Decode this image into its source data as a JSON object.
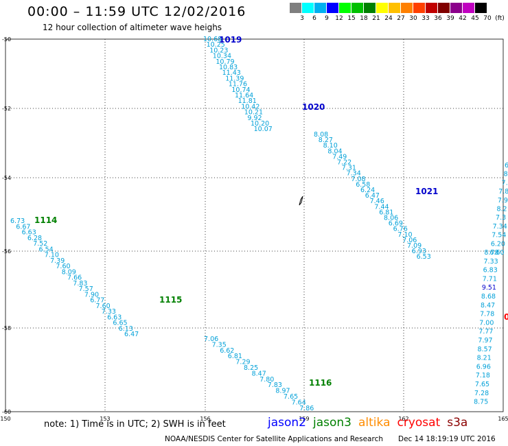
{
  "header": {
    "title": "00:00 – 11:59 UTC 12/02/2016",
    "subtitle": "12 hour collection of altimeter wave heighs"
  },
  "scale": {
    "labels": [
      "3",
      "6",
      "9",
      "12",
      "15",
      "18",
      "21",
      "24",
      "27",
      "30",
      "33",
      "36",
      "39",
      "42",
      "45",
      "70",
      "(ft)"
    ],
    "colors": [
      "#7f7f7f",
      "#00ffff",
      "#00b0f0",
      "#0000ff",
      "#00ff00",
      "#00c000",
      "#008000",
      "#ffff00",
      "#ffc000",
      "#ff8000",
      "#ff4000",
      "#c00000",
      "#800000",
      "#8b008b",
      "#c000c0",
      "#000000"
    ]
  },
  "map": {
    "x_ticks": [
      "150",
      "153",
      "156",
      "159",
      "162",
      "165"
    ],
    "y_ticks": [
      "-50",
      "-52",
      "-54",
      "-56",
      "-58",
      "-60"
    ]
  },
  "tracks": [
    {
      "name": "1019",
      "satellite": "jason2",
      "label_color": "#0000cc",
      "values": [
        "10.68",
        "10.25",
        "10.23",
        "10.34",
        "10.79",
        "10.83",
        "11.43",
        "11.39",
        "11.76",
        "10.74",
        "11.64",
        "11.81",
        "10.42",
        "10.21",
        "9.92",
        "10.20",
        "10.07"
      ]
    },
    {
      "name": "1020",
      "satellite": "jason2",
      "label_color": "#0000cc",
      "values": [
        "8.08",
        "8.27",
        "8.10",
        "8.04",
        "7.49",
        "7.22",
        "7.31",
        "7.34",
        "7.08",
        "6.58",
        "6.24",
        "6.47",
        "7.46",
        "7.44",
        "6.81",
        "8.06",
        "6.69",
        "6.76",
        "7.10",
        "7.06",
        "7.09",
        "6.93",
        "6.53"
      ]
    },
    {
      "name": "1021",
      "satellite": "jason2",
      "label_color": "#0000cc",
      "values": []
    },
    {
      "name": "1114",
      "satellite": "jason3",
      "label_color": "#008000",
      "values": [
        "6.73",
        "6.67",
        "6.63",
        "6.28",
        "7.52",
        "6.54",
        "7.10",
        "7.39",
        "7.60",
        "8.09",
        "7.66",
        "7.83",
        "7.57",
        "7.90",
        "6.77",
        "7.60",
        "7.33",
        "6.63",
        "6.65",
        "6.13",
        "6.47"
      ]
    },
    {
      "name": "1115",
      "satellite": "jason3",
      "label_color": "#008000",
      "values": [
        "7.06",
        "7.35",
        "6.62",
        "6.81",
        "7.29",
        "8.25",
        "8.47",
        "7.80",
        "7.83",
        "8.97",
        "7.65",
        "7.64",
        "7.86"
      ]
    },
    {
      "name": "1116",
      "satellite": "jason3",
      "label_color": "#008000",
      "values": []
    },
    {
      "name": "",
      "satellite": "",
      "label_color": "#00a0d8",
      "values": [
        "8.78",
        "7.33",
        "6.83",
        "7.71",
        "9.51",
        "8.68",
        "8.47",
        "7.78",
        "7.00",
        "7.77",
        "7.97",
        "8.57",
        "8.21",
        "6.96",
        "7.18",
        "7.65",
        "7.28",
        "8.75"
      ]
    },
    {
      "name": "",
      "satellite": "",
      "label_color": "#00a0d8",
      "values": [
        "6",
        "8",
        "7.",
        "7.8",
        "7.9",
        "8.2",
        "7.3",
        "7.34",
        "7.54",
        "6.20",
        "6.60"
      ]
    }
  ],
  "legend": {
    "note": "note: 1) Time is in UTC; 2) SWH is in feet",
    "satellites": [
      {
        "name": "jason2",
        "color": "#0000ff"
      },
      {
        "name": "jason3",
        "color": "#008000"
      },
      {
        "name": "altika",
        "color": "#ff8c00"
      },
      {
        "name": "cryosat",
        "color": "#ff0000"
      },
      {
        "name": "s3a",
        "color": "#8b0000"
      }
    ]
  },
  "footer": {
    "credit": "NOAA/NESDIS Center for Satellite Applications and Research",
    "timestamp": "Dec 14 18:19:19 UTC 2016"
  },
  "edge_marks": {
    "red_partial": "0"
  }
}
